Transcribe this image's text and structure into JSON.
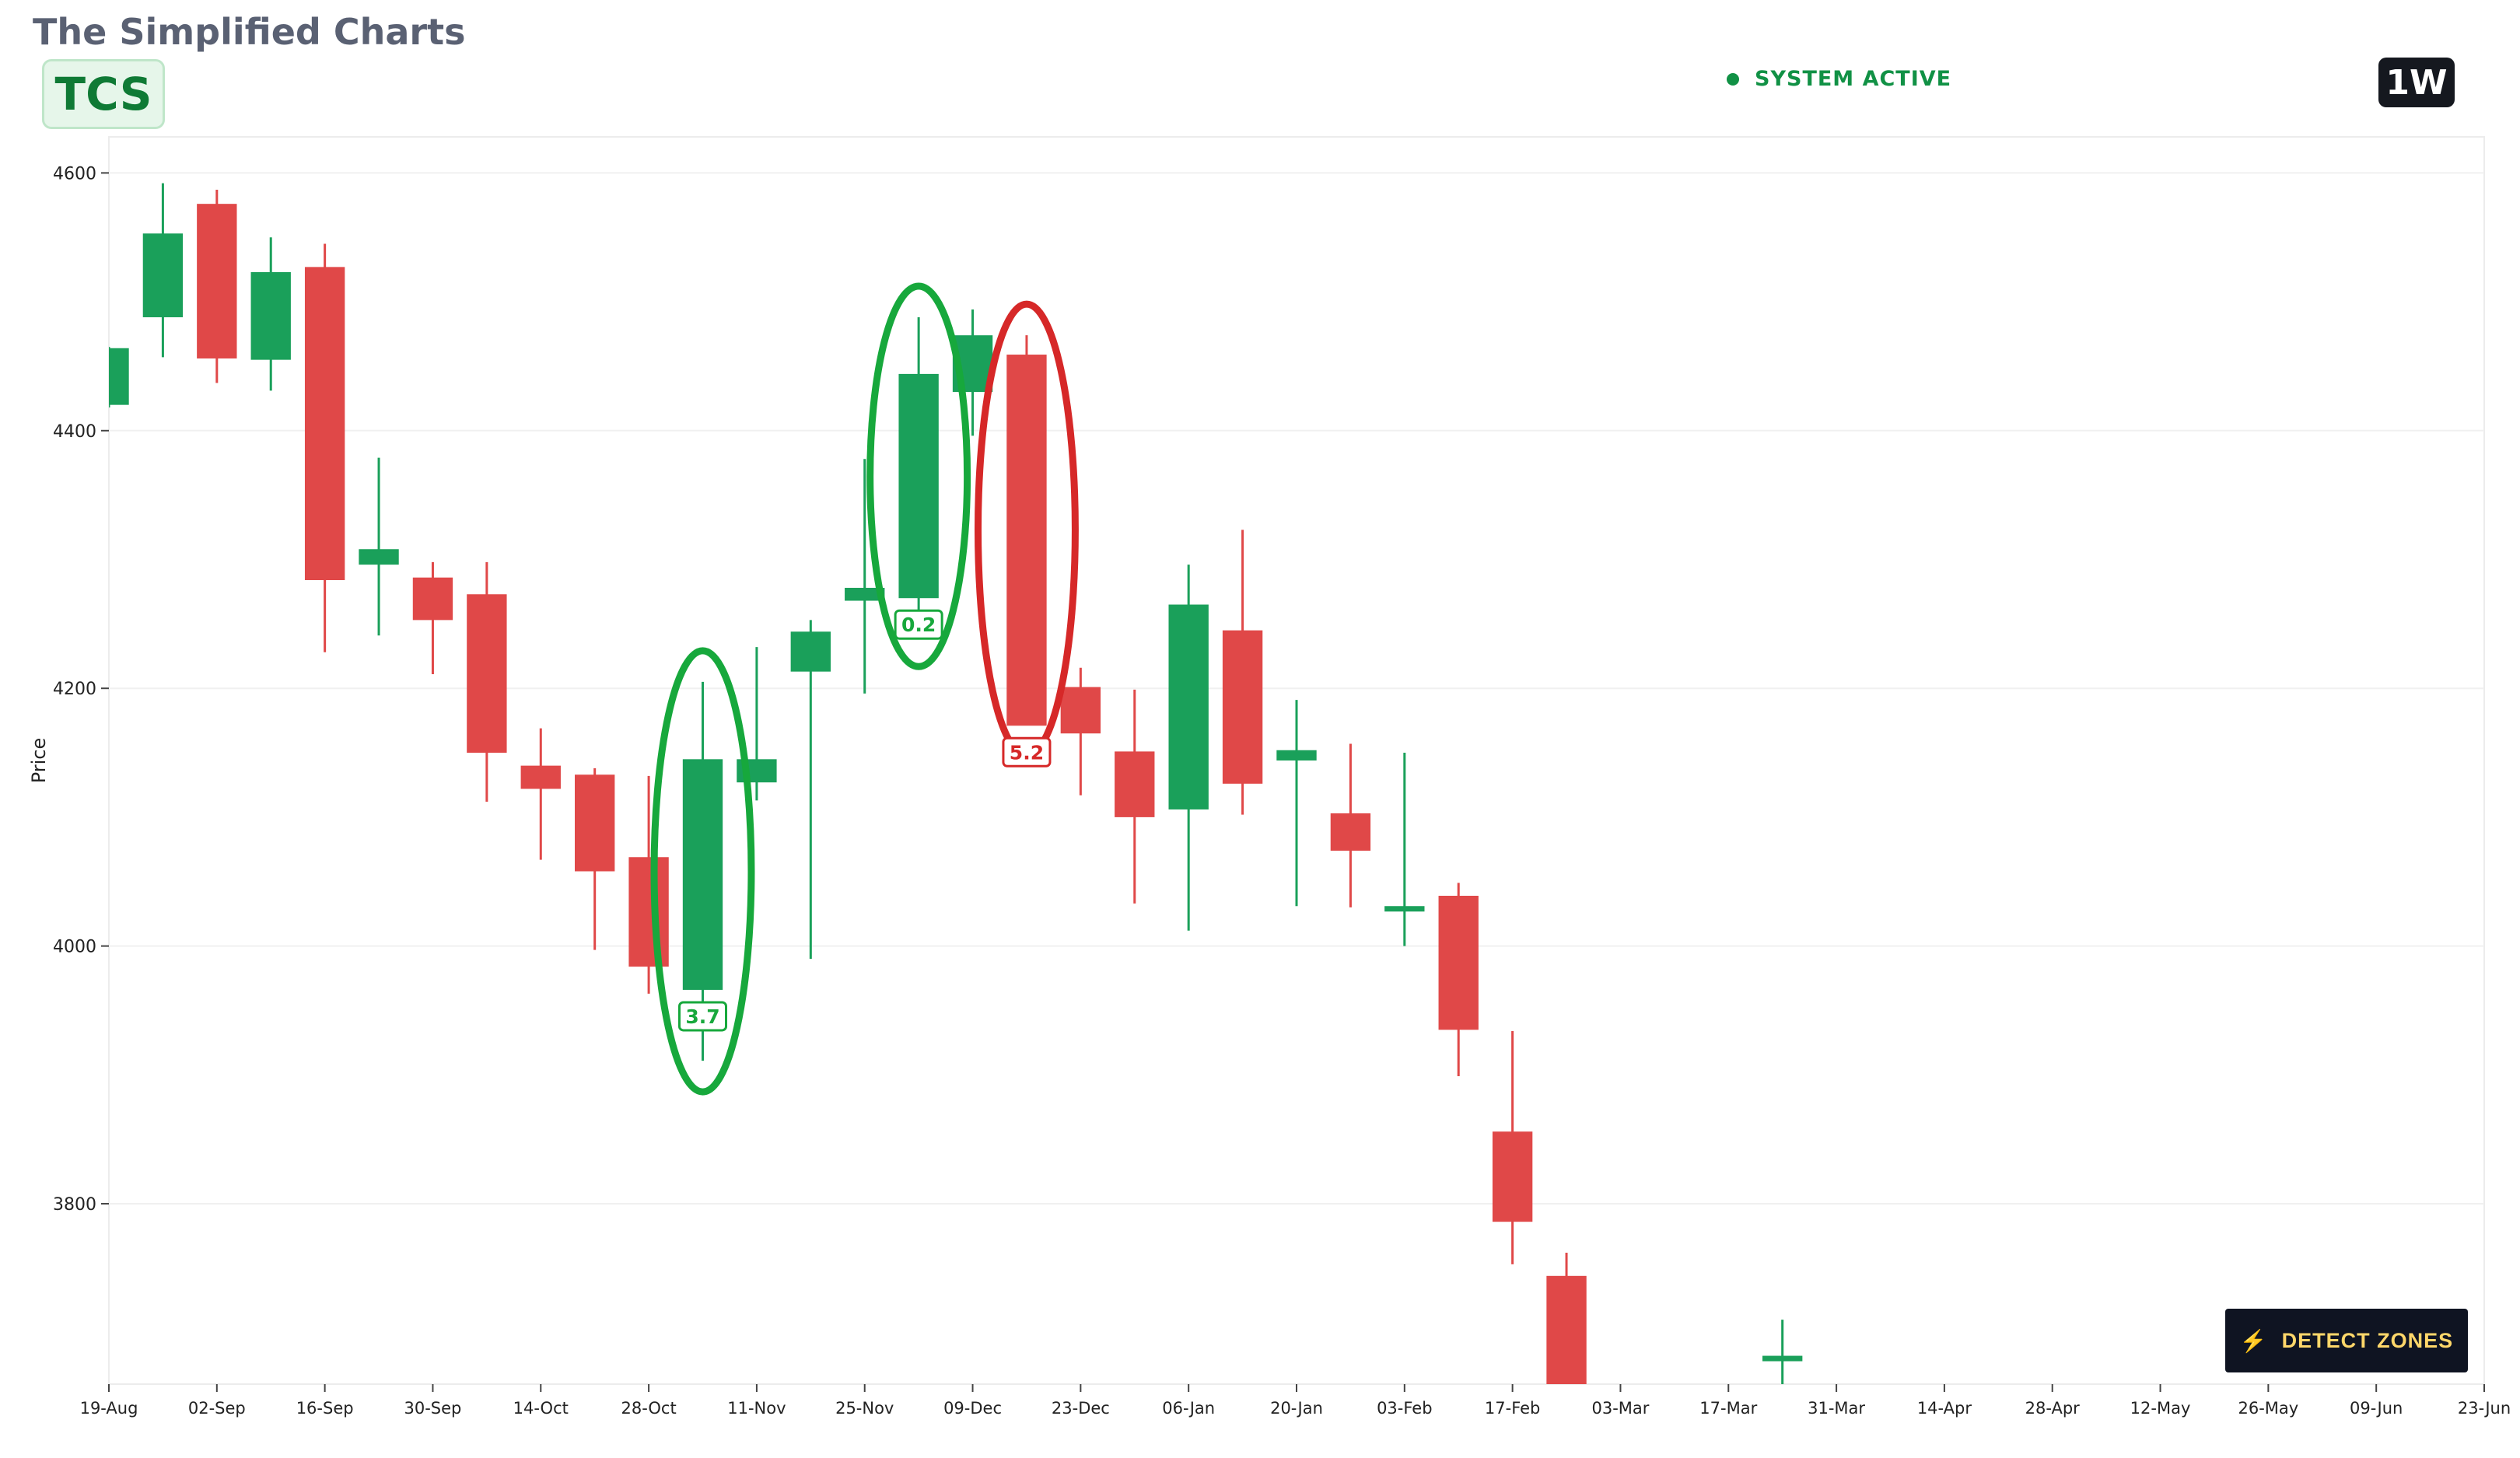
{
  "header": {
    "brand": "The Simplified Charts",
    "ticker": "TCS",
    "status": "SYSTEM ACTIVE",
    "timeframe": "1W"
  },
  "detect_button": {
    "label": "DETECT ZONES",
    "icon": "bolt-icon"
  },
  "colors": {
    "up": "#1aa05a",
    "down": "#e04848",
    "zone_green": "#17a83c",
    "zone_red": "#d62828"
  },
  "chart_data": {
    "type": "candlestick",
    "ylabel": "Price",
    "ylim": [
      3660,
      4628
    ],
    "yticks": [
      3800,
      4000,
      4200,
      4400,
      4600
    ],
    "xlim": [
      "2024-08-19",
      "2025-06-23"
    ],
    "xticks": [
      "19-Aug",
      "02-Sep",
      "16-Sep",
      "30-Sep",
      "14-Oct",
      "28-Oct",
      "11-Nov",
      "25-Nov",
      "09-Dec",
      "23-Dec",
      "06-Jan",
      "20-Jan",
      "03-Feb",
      "17-Feb",
      "03-Mar",
      "17-Mar",
      "31-Mar",
      "14-Apr",
      "28-Apr",
      "12-May",
      "26-May",
      "09-Jun",
      "23-Jun"
    ],
    "grid": true,
    "candles": [
      {
        "date": "2024-08-19",
        "open": 4420,
        "high": 4465,
        "low": 4418,
        "close": 4464
      },
      {
        "date": "2024-08-26",
        "open": 4488,
        "high": 4592,
        "low": 4457,
        "close": 4553
      },
      {
        "date": "2024-09-02",
        "open": 4576,
        "high": 4587,
        "low": 4437,
        "close": 4456
      },
      {
        "date": "2024-09-09",
        "open": 4455,
        "high": 4550,
        "low": 4431,
        "close": 4523
      },
      {
        "date": "2024-09-16",
        "open": 4527,
        "high": 4545,
        "low": 4228,
        "close": 4284
      },
      {
        "date": "2024-09-23",
        "open": 4296,
        "high": 4379,
        "low": 4241,
        "close": 4308
      },
      {
        "date": "2024-09-30",
        "open": 4286,
        "high": 4298,
        "low": 4211,
        "close": 4253
      },
      {
        "date": "2024-10-07",
        "open": 4273,
        "high": 4298,
        "low": 4112,
        "close": 4150
      },
      {
        "date": "2024-10-14",
        "open": 4140,
        "high": 4169,
        "low": 4067,
        "close": 4122
      },
      {
        "date": "2024-10-21",
        "open": 4133,
        "high": 4138,
        "low": 3997,
        "close": 4058
      },
      {
        "date": "2024-10-28",
        "open": 4069,
        "high": 4132,
        "low": 3963,
        "close": 3984
      },
      {
        "date": "2024-11-04",
        "open": 3966,
        "high": 4205,
        "low": 3911,
        "close": 4145
      },
      {
        "date": "2024-11-11",
        "open": 4127,
        "high": 4232,
        "low": 4113,
        "close": 4145
      },
      {
        "date": "2024-11-18",
        "open": 4213,
        "high": 4253,
        "low": 3990,
        "close": 4244
      },
      {
        "date": "2024-11-25",
        "open": 4268,
        "high": 4378,
        "low": 4196,
        "close": 4278
      },
      {
        "date": "2024-12-02",
        "open": 4270,
        "high": 4488,
        "low": 4241,
        "close": 4444
      },
      {
        "date": "2024-12-09",
        "open": 4430,
        "high": 4494,
        "low": 4396,
        "close": 4474
      },
      {
        "date": "2024-12-16",
        "open": 4459,
        "high": 4474,
        "low": 4172,
        "close": 4171
      },
      {
        "date": "2024-12-23",
        "open": 4201,
        "high": 4216,
        "low": 4117,
        "close": 4165
      },
      {
        "date": "2024-12-30",
        "open": 4151,
        "high": 4199,
        "low": 4033,
        "close": 4100
      },
      {
        "date": "2025-01-06",
        "open": 4106,
        "high": 4296,
        "low": 4012,
        "close": 4265
      },
      {
        "date": "2025-01-13",
        "open": 4245,
        "high": 4323,
        "low": 4102,
        "close": 4126
      },
      {
        "date": "2025-01-20",
        "open": 4144,
        "high": 4191,
        "low": 4031,
        "close": 4152
      },
      {
        "date": "2025-01-27",
        "open": 4103,
        "high": 4157,
        "low": 4030,
        "close": 4074
      },
      {
        "date": "2025-02-03",
        "open": 4031,
        "high": 4150,
        "low": 4000,
        "close": 4031
      },
      {
        "date": "2025-02-10",
        "open": 4039,
        "high": 4049,
        "low": 3899,
        "close": 3935
      },
      {
        "date": "2025-02-17",
        "open": 3856,
        "high": 3934,
        "low": 3753,
        "close": 3786
      },
      {
        "date": "2025-02-24",
        "open": 3744,
        "high": 3762,
        "low": 3660,
        "close": 3660
      },
      {
        "date": "2025-03-24",
        "open": 3680,
        "high": 3710,
        "low": 3660,
        "close": 3682
      }
    ],
    "zones": [
      {
        "type": "demand",
        "date": "2024-11-04",
        "label": "3.7"
      },
      {
        "type": "demand",
        "date": "2024-12-02",
        "label": "0.2"
      },
      {
        "type": "supply",
        "date": "2024-12-16",
        "label": "5.2"
      }
    ]
  }
}
